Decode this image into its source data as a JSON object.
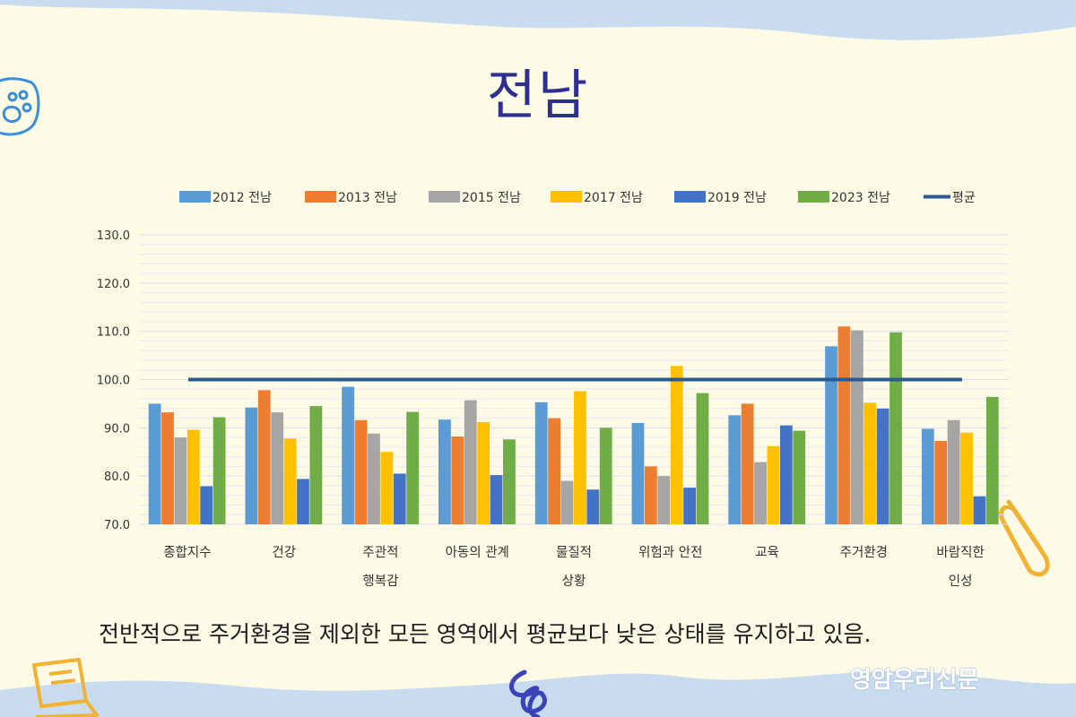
{
  "title": "전남",
  "summary": "전반적으로 주거환경을 제외한 모든 영역에서 평균보다 낮은 상태를 유지하고 있음.",
  "watermark": "영암우리신문",
  "colors": {
    "background": "#fdfbe6",
    "wave": "#c9dcef",
    "title": "#2e2f8f"
  },
  "icons": [
    "paw-icon",
    "paperclip-icon",
    "laptop-icon",
    "scribble-icon"
  ],
  "chart_data": {
    "type": "bar",
    "title": "",
    "xlabel": "",
    "ylabel": "",
    "ylim": [
      70,
      130
    ],
    "yticks": [
      "130.0",
      "120.0",
      "110.0",
      "100.0",
      "90.0",
      "80.0",
      "70.0"
    ],
    "grid": true,
    "legend_position": "top",
    "categories": [
      [
        "종합지수"
      ],
      [
        "건강"
      ],
      [
        "주관적",
        "행복감"
      ],
      [
        "아동의 관계"
      ],
      [
        "물질적",
        "상황"
      ],
      [
        "위험과 안전"
      ],
      [
        "교육"
      ],
      [
        "주거환경"
      ],
      [
        "바람직한",
        "인성"
      ]
    ],
    "series": [
      {
        "name": "2012 전남",
        "color": "#5b9bd5",
        "values": [
          95.0,
          94.2,
          98.5,
          91.7,
          95.3,
          91.0,
          92.6,
          106.9,
          89.8
        ]
      },
      {
        "name": "2013 전남",
        "color": "#ed7d31",
        "values": [
          93.2,
          97.8,
          91.6,
          88.2,
          92.0,
          82.0,
          95.0,
          111.0,
          87.3
        ]
      },
      {
        "name": "2015 전남",
        "color": "#a5a5a5",
        "values": [
          88.0,
          93.2,
          88.8,
          95.7,
          79.0,
          80.0,
          82.9,
          110.2,
          91.6
        ]
      },
      {
        "name": "2017 전남",
        "color": "#ffc000",
        "values": [
          89.6,
          87.8,
          85.0,
          91.2,
          97.6,
          102.8,
          86.2,
          95.2,
          89.0
        ]
      },
      {
        "name": "2019 전남",
        "color": "#4472c4",
        "values": [
          77.9,
          79.4,
          80.5,
          80.2,
          77.2,
          77.6,
          90.5,
          94.0,
          75.8
        ]
      },
      {
        "name": "2023 전남",
        "color": "#70ad47",
        "values": [
          92.2,
          94.5,
          93.3,
          87.6,
          90.0,
          97.2,
          89.4,
          109.8,
          96.4
        ]
      }
    ],
    "average": {
      "name": "평균",
      "value": 100,
      "color": "#2c5a8f"
    }
  }
}
